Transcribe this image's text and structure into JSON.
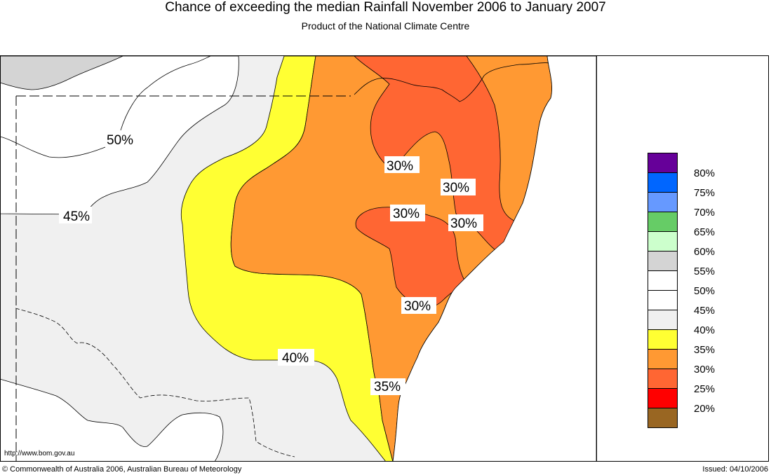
{
  "header": {
    "title": "Chance of exceeding the median Rainfall November 2006 to January 2007",
    "subtitle": "Product of the National Climate Centre"
  },
  "map": {
    "contour_labels": [
      "50%",
      "45%",
      "40%",
      "35%",
      "30%",
      "30%",
      "30%",
      "30%",
      "30%"
    ],
    "url": "http://www.bom.gov.au"
  },
  "legend": {
    "entries": [
      {
        "label": "80%",
        "color": "#660099"
      },
      {
        "label": "75%",
        "color": "#0066ff"
      },
      {
        "label": "70%",
        "color": "#6699ff"
      },
      {
        "label": "65%",
        "color": "#66cc66"
      },
      {
        "label": "60%",
        "color": "#ccffcc"
      },
      {
        "label": "55%",
        "color": "#d4d4d4"
      },
      {
        "label": "50%",
        "color": "#ffffff"
      },
      {
        "label": "45%",
        "color": "#ffffff"
      },
      {
        "label": "40%",
        "color": "#f0f0f0"
      },
      {
        "label": "35%",
        "color": "#ffff33"
      },
      {
        "label": "30%",
        "color": "#ff9933"
      },
      {
        "label": "25%",
        "color": "#ff6633"
      },
      {
        "label": "20%",
        "color": "#ff0000"
      },
      {
        "label": "",
        "color": "#996622"
      }
    ],
    "labels": [
      "80%",
      "75%",
      "70%",
      "65%",
      "60%",
      "55%",
      "50%",
      "45%",
      "40%",
      "35%",
      "30%",
      "25%",
      "20%"
    ]
  },
  "footer": {
    "copyright": "© Commonwealth of Australia 2006, Australian Bureau of Meteorology",
    "issued": "Issued: 04/10/2006"
  }
}
